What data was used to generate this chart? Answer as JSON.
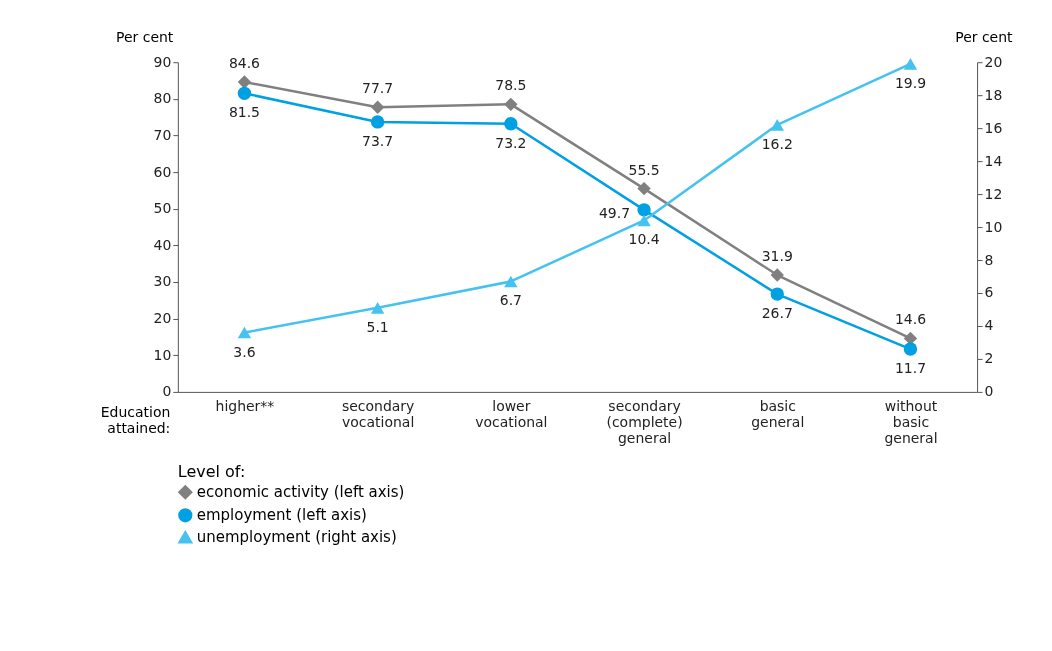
{
  "chart_data": {
    "type": "line",
    "categories": [
      "higher**",
      "secondary vocational",
      "lower vocational",
      "secondary (complete) general",
      "basic general",
      "without basic general"
    ],
    "xlabel": "Education attained:",
    "ylabel": "Per cent",
    "y2label": "Per cent",
    "legend_title": "Level of:",
    "series": [
      {
        "name": "economic activity (left axis)",
        "color": "#808080",
        "marker": "diamond",
        "values": [
          84.6,
          77.7,
          78.5,
          55.5,
          31.9,
          14.6
        ]
      },
      {
        "name": "employment (left axis)",
        "color": "#00a0e3",
        "marker": "circle",
        "values": [
          81.5,
          73.7,
          73.2,
          49.7,
          26.7,
          11.7
        ]
      },
      {
        "name": "unemployment (right axis)",
        "color": "#45c2f0",
        "marker": "triangle",
        "axis": "y2",
        "values": [
          3.6,
          5.1,
          6.7,
          10.4,
          16.2,
          19.9
        ]
      }
    ],
    "ylim": [
      0,
      90
    ],
    "yticks": [
      0,
      10,
      20,
      30,
      40,
      50,
      60,
      70,
      80,
      90
    ],
    "y2lim": [
      0,
      20
    ],
    "y2ticks": [
      0,
      2,
      4,
      6,
      8,
      10,
      12,
      14,
      16,
      18,
      20
    ],
    "data_labels": true,
    "legend": "bottom",
    "grid": false,
    "line_style": "solid"
  }
}
